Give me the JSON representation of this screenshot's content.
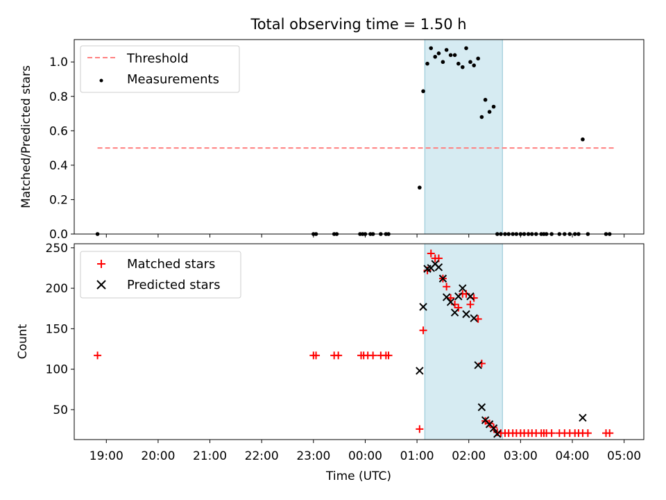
{
  "chart_data": [
    {
      "type": "scatter",
      "title": "Total observing time = 1.50 h",
      "xlabel": "",
      "ylabel": "Matched/Predicted stars",
      "x_unit": "hours after 18:00 UTC",
      "xlim": [
        0.38,
        11.38
      ],
      "ylim": [
        0.0,
        1.13
      ],
      "yticks": [
        0.0,
        0.2,
        0.4,
        0.6,
        0.8,
        1.0
      ],
      "yticklabels": [
        "0.0",
        "0.2",
        "0.4",
        "0.6",
        "0.8",
        "1.0"
      ],
      "shaded_interval": [
        7.15,
        8.65
      ],
      "legend": {
        "position": "top-left",
        "entries": [
          "Threshold",
          "Measurements"
        ]
      },
      "series": [
        {
          "name": "Threshold",
          "style": "dashed-line",
          "color": "#ff7f7f",
          "x": [
            0.83,
            10.83
          ],
          "y": [
            0.5,
            0.5
          ]
        },
        {
          "name": "Measurements",
          "style": "dot",
          "color": "#000000",
          "x": [
            0.83,
            5.0,
            5.05,
            5.4,
            5.45,
            5.9,
            5.95,
            6.0,
            6.1,
            6.15,
            6.3,
            6.4,
            6.45,
            7.05,
            7.12,
            7.2,
            7.27,
            7.35,
            7.42,
            7.5,
            7.57,
            7.65,
            7.73,
            7.8,
            7.88,
            7.95,
            8.03,
            8.1,
            8.18,
            8.25,
            8.32,
            8.4,
            8.48,
            8.55,
            8.62,
            8.7,
            8.77,
            8.85,
            8.92,
            9.0,
            9.07,
            9.15,
            9.22,
            9.3,
            9.4,
            9.45,
            9.5,
            9.6,
            9.75,
            9.85,
            9.95,
            10.05,
            10.12,
            10.2,
            10.3,
            10.65,
            10.72
          ],
          "y": [
            0.0,
            0.0,
            0.0,
            0.0,
            0.0,
            0.0,
            0.0,
            0.0,
            0.0,
            0.0,
            0.0,
            0.0,
            0.0,
            0.27,
            0.83,
            0.99,
            1.08,
            1.03,
            1.05,
            1.0,
            1.07,
            1.04,
            1.04,
            0.99,
            0.97,
            1.08,
            1.0,
            0.98,
            1.02,
            0.68,
            0.78,
            0.71,
            0.74,
            0.0,
            0.0,
            0.0,
            0.0,
            0.0,
            0.0,
            0.0,
            0.0,
            0.0,
            0.0,
            0.0,
            0.0,
            0.0,
            0.0,
            0.0,
            0.0,
            0.0,
            0.0,
            0.0,
            0.0,
            0.55,
            0.0,
            0.0,
            0.0
          ]
        }
      ]
    },
    {
      "type": "scatter",
      "title": "",
      "xlabel": "Time (UTC)",
      "ylabel": "Count",
      "x_unit": "hours after 18:00 UTC",
      "xlim": [
        0.38,
        11.38
      ],
      "ylim": [
        13,
        255
      ],
      "xticks": [
        1,
        2,
        3,
        4,
        5,
        6,
        7,
        8,
        9,
        10,
        11
      ],
      "xticklabels": [
        "19:00",
        "20:00",
        "21:00",
        "22:00",
        "23:00",
        "00:00",
        "01:00",
        "02:00",
        "03:00",
        "04:00",
        "05:00"
      ],
      "yticks": [
        50,
        100,
        150,
        200,
        250
      ],
      "yticklabels": [
        "50",
        "100",
        "150",
        "200",
        "250"
      ],
      "shaded_interval": [
        7.15,
        8.65
      ],
      "legend": {
        "position": "top-left",
        "entries": [
          "Matched stars",
          "Predicted stars"
        ]
      },
      "series": [
        {
          "name": "Matched stars",
          "marker": "plus",
          "color": "#ff0000",
          "x": [
            0.83,
            5.0,
            5.05,
            5.4,
            5.48,
            5.92,
            5.97,
            6.05,
            6.15,
            6.3,
            6.4,
            6.45,
            7.05,
            7.12,
            7.2,
            7.27,
            7.35,
            7.42,
            7.5,
            7.57,
            7.65,
            7.73,
            7.8,
            7.88,
            7.95,
            8.03,
            8.1,
            8.18,
            8.25,
            8.32,
            8.4,
            8.48,
            8.55,
            8.62,
            8.7,
            8.77,
            8.85,
            8.92,
            9.0,
            9.07,
            9.15,
            9.22,
            9.3,
            9.4,
            9.45,
            9.5,
            9.6,
            9.75,
            9.85,
            9.95,
            10.05,
            10.12,
            10.2,
            10.3,
            10.65,
            10.72
          ],
          "y": [
            117,
            117,
            117,
            117,
            117,
            117,
            117,
            117,
            117,
            117,
            117,
            117,
            26,
            148,
            222,
            243,
            237,
            237,
            212,
            202,
            188,
            180,
            176,
            193,
            193,
            180,
            188,
            162,
            107,
            36,
            33,
            28,
            22,
            21,
            21,
            21,
            21,
            21,
            21,
            21,
            21,
            21,
            21,
            21,
            21,
            21,
            21,
            21,
            21,
            21,
            21,
            21,
            21,
            21,
            21,
            21
          ]
        },
        {
          "name": "Predicted stars",
          "marker": "x",
          "color": "#000000",
          "x": [
            7.05,
            7.12,
            7.2,
            7.27,
            7.35,
            7.42,
            7.5,
            7.57,
            7.65,
            7.73,
            7.8,
            7.88,
            7.95,
            8.03,
            8.1,
            8.18,
            8.25,
            8.32,
            8.4,
            8.48,
            8.55,
            10.2
          ],
          "y": [
            98,
            177,
            224,
            225,
            230,
            226,
            212,
            189,
            183,
            170,
            190,
            200,
            168,
            190,
            163,
            105,
            53,
            37,
            32,
            27,
            20,
            40
          ]
        }
      ]
    }
  ]
}
